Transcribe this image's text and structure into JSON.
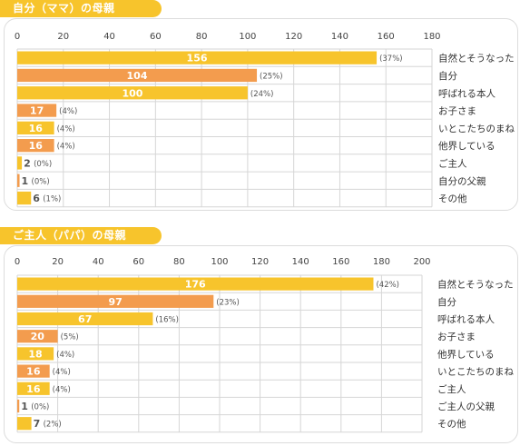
{
  "chart_data": [
    {
      "type": "bar",
      "orientation": "horizontal",
      "title": "自分（ママ）の母親",
      "xlim": [
        0,
        180
      ],
      "ticks": [
        0,
        20,
        40,
        60,
        80,
        100,
        120,
        140,
        160,
        180
      ],
      "grid": true,
      "colors": {
        "primary": "#f7c42c",
        "secondary": "#f39c4e"
      },
      "categories": [
        "自然とそうなった",
        "自分",
        "呼ばれる本人",
        "お子さま",
        "いとこたちのまね",
        "他界している",
        "ご主人",
        "自分の父親",
        "その他"
      ],
      "values": [
        156,
        104,
        100,
        17,
        16,
        16,
        2,
        1,
        6
      ],
      "percents": [
        "(37%)",
        "(25%)",
        "(24%)",
        "(4%)",
        "(4%)",
        "(4%)",
        "(0%)",
        "(0%)",
        "(1%)"
      ]
    },
    {
      "type": "bar",
      "orientation": "horizontal",
      "title": "ご主人（パパ）の母親",
      "xlim": [
        0,
        200
      ],
      "ticks": [
        0,
        20,
        40,
        60,
        80,
        100,
        120,
        140,
        160,
        180,
        200
      ],
      "grid": true,
      "colors": {
        "primary": "#f7c42c",
        "secondary": "#f39c4e"
      },
      "categories": [
        "自然とそうなった",
        "自分",
        "呼ばれる本人",
        "お子さま",
        "他界している",
        "いとこたちのまね",
        "ご主人",
        "ご主人の父親",
        "その他"
      ],
      "values": [
        176,
        97,
        67,
        20,
        18,
        16,
        16,
        1,
        7
      ],
      "percents": [
        "(42%)",
        "(23%)",
        "(16%)",
        "(5%)",
        "(4%)",
        "(4%)",
        "(4%)",
        "(0%)",
        "(2%)"
      ]
    }
  ]
}
